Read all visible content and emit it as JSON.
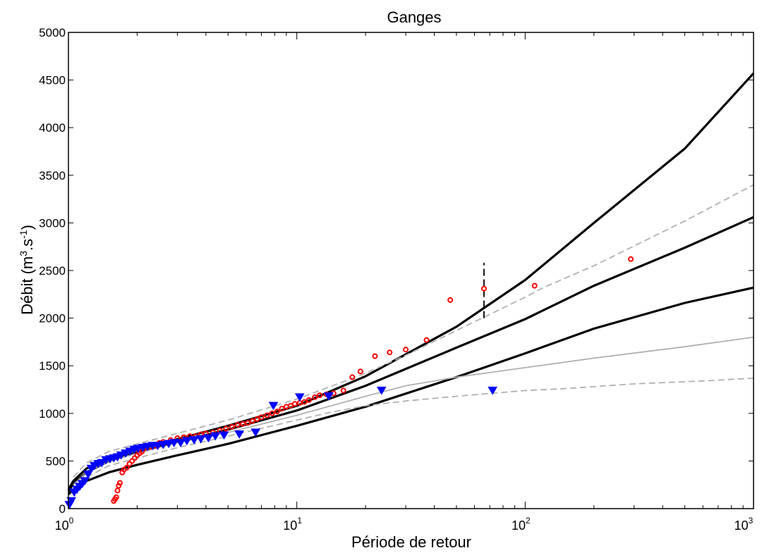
{
  "chart_data": {
    "type": "line",
    "title": "Ganges",
    "xlabel": "Période de retour",
    "ylabel": {
      "main": "Débit (m",
      "sup1": "3",
      "mid": ".s",
      "sup2": "-1",
      "end": ")"
    },
    "x_scale": "log",
    "xlim": [
      1,
      1000
    ],
    "ylim": [
      0,
      5000
    ],
    "x_ticks": [
      {
        "base": "10",
        "exp": "0"
      },
      {
        "base": "10",
        "exp": "1"
      },
      {
        "base": "10",
        "exp": "2"
      },
      {
        "base": "10",
        "exp": "3"
      }
    ],
    "y_ticks": [
      "0",
      "500",
      "1000",
      "1500",
      "2000",
      "2500",
      "3000",
      "3500",
      "4000",
      "4500",
      "5000"
    ],
    "y_tick_values": [
      0,
      500,
      1000,
      1500,
      2000,
      2500,
      3000,
      3500,
      4000,
      4500,
      5000
    ],
    "grid": false,
    "colors": {
      "black_curve": "#000000",
      "grey_curve": "#b0b0b0",
      "obs_red": "#ff0000",
      "obs_blue": "#0000ff"
    },
    "series": [
      {
        "style": "black-solid",
        "x": [
          1.0,
          1.05,
          1.2,
          1.5,
          2.0,
          3.0,
          5.0,
          10.0,
          20.0,
          50.0,
          100.0,
          200.0,
          500.0,
          1000.0
        ],
        "y": [
          150,
          200,
          290,
          380,
          460,
          560,
          680,
          870,
          1070,
          1380,
          1630,
          1890,
          2160,
          2320
        ]
      },
      {
        "style": "black-solid",
        "x": [
          1.0,
          1.05,
          1.2,
          1.5,
          2.0,
          3.0,
          5.0,
          10.0,
          20.0,
          50.0,
          100.0,
          200.0,
          500.0,
          1000.0
        ],
        "y": [
          180,
          260,
          380,
          500,
          590,
          700,
          830,
          1030,
          1290,
          1690,
          1990,
          2340,
          2740,
          3060
        ]
      },
      {
        "style": "black-solid",
        "x": [
          1.0,
          1.05,
          1.2,
          1.5,
          2.0,
          3.0,
          5.0,
          10.0,
          20.0,
          50.0,
          100.0,
          200.0,
          500.0,
          1000.0
        ],
        "y": [
          200,
          290,
          420,
          540,
          620,
          730,
          870,
          1080,
          1390,
          1910,
          2400,
          3000,
          3780,
          4570
        ]
      },
      {
        "style": "grey-solid",
        "x": [
          1.05,
          1.2,
          1.5,
          2.0,
          3.0,
          5.0,
          10.0,
          20.0,
          30.0,
          50.0,
          100.0,
          200.0,
          500.0,
          1000.0
        ],
        "y": [
          250,
          380,
          500,
          580,
          690,
          800,
          980,
          1180,
          1290,
          1380,
          1480,
          1580,
          1700,
          1800
        ]
      },
      {
        "style": "grey-dashed",
        "x": [
          1.05,
          1.2,
          1.5,
          2.0,
          3.0,
          5.0,
          10.0,
          14.0,
          20.0,
          30.0,
          50.0,
          100.0,
          150.0,
          300.0,
          600.0,
          1000.0
        ],
        "y": [
          180,
          330,
          450,
          530,
          640,
          760,
          930,
          1010,
          1080,
          1130,
          1180,
          1240,
          1260,
          1310,
          1340,
          1370
        ]
      },
      {
        "style": "grey-dashed",
        "x": [
          1.05,
          1.2,
          1.5,
          2.0,
          3.0,
          5.0,
          10.0,
          20.0,
          30.0,
          50.0,
          100.0,
          120.0,
          200.0,
          500.0,
          1000.0
        ],
        "y": [
          330,
          480,
          600,
          680,
          790,
          930,
          1150,
          1420,
          1610,
          1870,
          2220,
          2320,
          2550,
          3020,
          3400
        ]
      }
    ],
    "observations_red": {
      "marker": "circle",
      "x": [
        1.58,
        1.6,
        1.62,
        1.64,
        1.66,
        1.68,
        1.72,
        1.75,
        1.8,
        1.85,
        1.9,
        1.95,
        2.0,
        2.05,
        2.1,
        2.2,
        2.3,
        2.4,
        2.5,
        2.6,
        2.8,
        3.0,
        3.2,
        3.4,
        3.6,
        3.8,
        4.0,
        4.3,
        4.6,
        4.9,
        5.2,
        5.5,
        5.8,
        6.1,
        6.4,
        6.7,
        7.0,
        7.4,
        7.8,
        8.2,
        8.6,
        9.0,
        9.4,
        9.8,
        10.3,
        10.8,
        11.3,
        12.0,
        12.6,
        13.5,
        14.5,
        16.0,
        17.5,
        19.0,
        22.0,
        25.5,
        30.0,
        37.0,
        47.0,
        66.0,
        110.0,
        290.0
      ],
      "y": [
        80,
        100,
        120,
        190,
        240,
        270,
        380,
        410,
        430,
        470,
        500,
        530,
        560,
        580,
        600,
        640,
        650,
        660,
        690,
        700,
        720,
        740,
        750,
        760,
        760,
        780,
        790,
        800,
        820,
        840,
        860,
        880,
        890,
        900,
        920,
        940,
        960,
        980,
        1000,
        1020,
        1050,
        1070,
        1080,
        1100,
        1110,
        1120,
        1140,
        1170,
        1190,
        1200,
        1210,
        1240,
        1380,
        1440,
        1600,
        1640,
        1670,
        1770,
        2190,
        2310,
        2340,
        2620
      ]
    },
    "observations_blue": {
      "marker": "triangle-down",
      "x": [
        1.01,
        1.03,
        1.06,
        1.09,
        1.12,
        1.15,
        1.18,
        1.22,
        1.26,
        1.3,
        1.35,
        1.4,
        1.46,
        1.52,
        1.58,
        1.64,
        1.7,
        1.78,
        1.86,
        1.94,
        2.02,
        2.12,
        2.22,
        2.34,
        2.46,
        2.6,
        2.75,
        2.9,
        3.1,
        3.3,
        3.55,
        3.8,
        4.1,
        4.4,
        4.8,
        5.6,
        6.6,
        7.9,
        10.3,
        13.8,
        23.5,
        72.0
      ],
      "y": [
        40,
        80,
        170,
        200,
        230,
        260,
        290,
        360,
        420,
        450,
        470,
        480,
        510,
        520,
        530,
        540,
        560,
        580,
        600,
        620,
        630,
        640,
        650,
        660,
        660,
        670,
        680,
        690,
        690,
        710,
        720,
        730,
        740,
        760,
        770,
        780,
        800,
        1080,
        1170,
        1180,
        1240,
        1240
      ]
    },
    "annotations": [
      {
        "type": "dashed-vertical-bar",
        "x": 66.0,
        "y_from": 2000,
        "y_to": 2580
      }
    ]
  }
}
